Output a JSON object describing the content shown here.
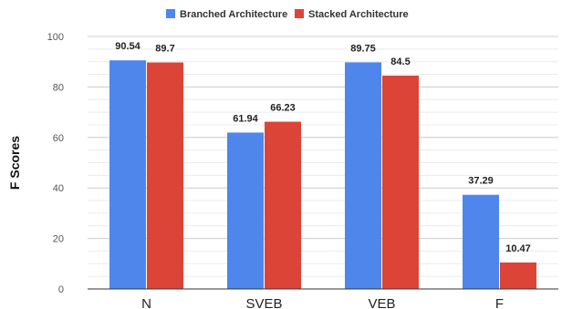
{
  "chart_data": {
    "type": "bar",
    "categories": [
      "N",
      "SVEB",
      "VEB",
      "F"
    ],
    "series": [
      {
        "name": "Branched Architecture",
        "values": [
          90.54,
          61.94,
          89.75,
          37.29
        ],
        "color": "#4f86ec"
      },
      {
        "name": "Stacked Architecture",
        "values": [
          89.7,
          66.23,
          84.5,
          10.47
        ],
        "color": "#db4437"
      }
    ],
    "ylabel": "F Scores",
    "ylim": [
      0,
      100
    ],
    "yticks": [
      0,
      20,
      40,
      60,
      80,
      100
    ],
    "grid": true,
    "legend": "top-center"
  }
}
